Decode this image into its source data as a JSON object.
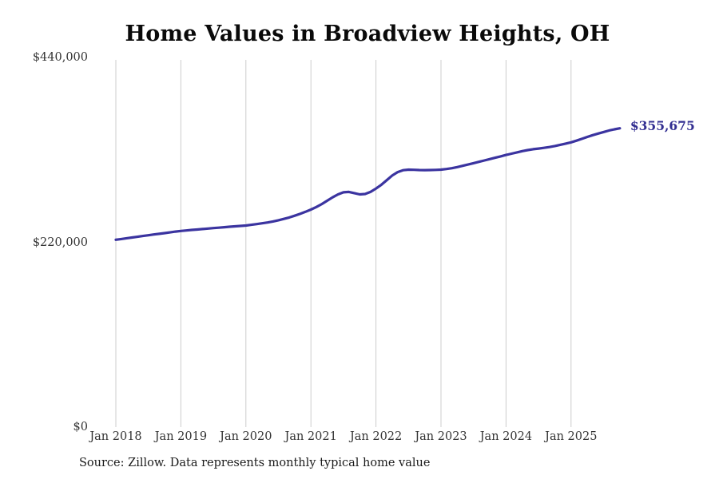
{
  "page": {
    "source_note": "Source: Zillow. Data represents monthly typical home value"
  },
  "chart_data": {
    "type": "line",
    "title": "Home Values in Broadview Heights, OH",
    "unit": "USD",
    "grid": "vertical-only",
    "legend": false,
    "y_axis": {
      "min": 0,
      "max": 440000,
      "ticks": [
        {
          "value": 0,
          "label": "$0"
        },
        {
          "value": 220000,
          "label": "$220,000"
        },
        {
          "value": 440000,
          "label": "$440,000"
        }
      ]
    },
    "x_axis": {
      "ticks": [
        {
          "year": 2018,
          "label": "Jan 2018"
        },
        {
          "year": 2019,
          "label": "Jan 2019"
        },
        {
          "year": 2020,
          "label": "Jan 2020"
        },
        {
          "year": 2021,
          "label": "Jan 2021"
        },
        {
          "year": 2022,
          "label": "Jan 2022"
        },
        {
          "year": 2023,
          "label": "Jan 2023"
        },
        {
          "year": 2024,
          "label": "Jan 2024"
        },
        {
          "year": 2025,
          "label": "Jan 2025"
        }
      ]
    },
    "series": [
      {
        "name": "Typical home value",
        "frequency": "monthly",
        "start_month": "2018-01",
        "end_month": "2025-10",
        "values": [
          223000,
          223900,
          224800,
          225700,
          226600,
          227500,
          228400,
          229300,
          230100,
          230900,
          231800,
          232700,
          233500,
          234100,
          234700,
          235200,
          235800,
          236300,
          236900,
          237400,
          238000,
          238500,
          239000,
          239500,
          240000,
          240800,
          241700,
          242600,
          243600,
          244800,
          246200,
          247800,
          249600,
          251600,
          253800,
          256300,
          259000,
          262000,
          265500,
          269500,
          273500,
          277000,
          279500,
          280000,
          278500,
          277000,
          277500,
          280000,
          284000,
          288500,
          294000,
          299500,
          303500,
          305800,
          306500,
          306300,
          306000,
          305900,
          306000,
          306200,
          306500,
          307200,
          308200,
          309500,
          311000,
          312600,
          314200,
          315800,
          317400,
          319000,
          320600,
          322300,
          324000,
          325500,
          327000,
          328500,
          329800,
          330800,
          331600,
          332400,
          333400,
          334600,
          336000,
          337500,
          339000,
          341000,
          343200,
          345400,
          347500,
          349400,
          351200,
          353000,
          354500,
          355675
        ]
      }
    ],
    "final_value": 355675,
    "end_label": "$355,675",
    "colors": {
      "line": "#3b34a0",
      "end_label": "#322e91",
      "gridline": "#cccccc",
      "tick_text": "#333333",
      "title_text": "#0a0a0a",
      "source_text": "#1a1a1a"
    }
  }
}
